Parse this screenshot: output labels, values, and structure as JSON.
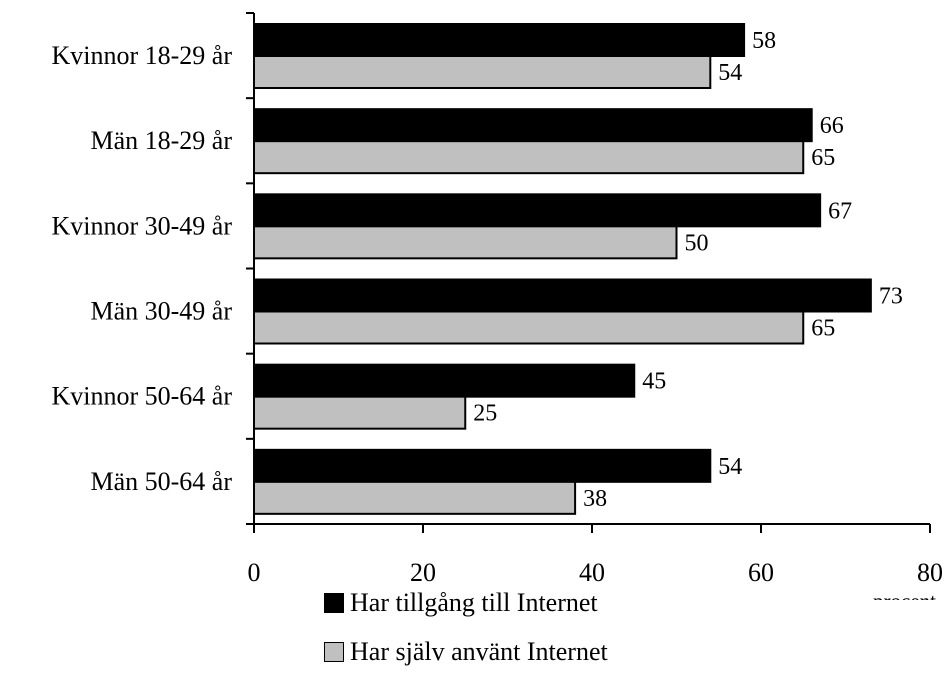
{
  "chart_data": {
    "type": "bar",
    "orientation": "horizontal",
    "categories": [
      "Kvinnor 18-29 år",
      "Män 18-29 år",
      "Kvinnor 30-49 år",
      "Män 30-49 år",
      "Kvinnor 50-64 år",
      "Män 50-64 år"
    ],
    "series": [
      {
        "name": "Har tillgång till Internet",
        "color": "#000000",
        "values": [
          58,
          66,
          67,
          73,
          45,
          54
        ]
      },
      {
        "name": "Har själv använt Internet",
        "color": "#c0c0c0",
        "values": [
          54,
          65,
          50,
          65,
          25,
          38
        ]
      }
    ],
    "xlabel": "procent",
    "ylabel": "",
    "xlim": [
      0,
      80
    ],
    "xticks": [
      0,
      20,
      40,
      60,
      80
    ],
    "grid": false,
    "legend_position": "bottom"
  }
}
